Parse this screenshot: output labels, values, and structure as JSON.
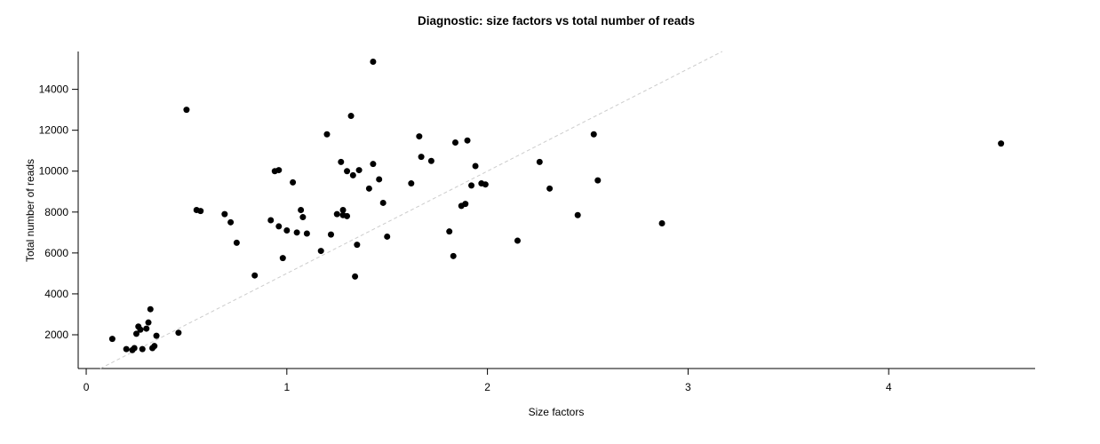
{
  "chart_data": {
    "type": "scatter",
    "title": "Diagnostic: size factors vs total number of reads",
    "xlabel": "Size factors",
    "ylabel": "Total number of reads",
    "xlim": [
      -0.04,
      4.73
    ],
    "ylim": [
      350,
      15850
    ],
    "x_ticks": [
      0,
      1,
      2,
      3,
      4
    ],
    "x_tick_labels": [
      "0",
      "1",
      "2",
      "3",
      "4"
    ],
    "y_ticks": [
      2000,
      4000,
      6000,
      8000,
      10000,
      12000,
      14000
    ],
    "y_tick_labels": [
      "2000",
      "4000",
      "6000",
      "8000",
      "10000",
      "12000",
      "14000"
    ],
    "grid": false,
    "legend": "none",
    "point_color": "#000000",
    "point_radius": 3.5,
    "axis_color": "#000000",
    "trend_line": {
      "style": "dashed",
      "intercept": 0,
      "slope": 5000,
      "color": "#cccccc"
    },
    "points": [
      [
        0.13,
        1800
      ],
      [
        0.2,
        1300
      ],
      [
        0.23,
        1250
      ],
      [
        0.24,
        1350
      ],
      [
        0.25,
        2050
      ],
      [
        0.26,
        2400
      ],
      [
        0.27,
        2250
      ],
      [
        0.28,
        1300
      ],
      [
        0.3,
        2300
      ],
      [
        0.31,
        2600
      ],
      [
        0.32,
        3250
      ],
      [
        0.33,
        1350
      ],
      [
        0.34,
        1450
      ],
      [
        0.35,
        1950
      ],
      [
        0.46,
        2100
      ],
      [
        0.5,
        13000
      ],
      [
        0.55,
        8100
      ],
      [
        0.57,
        8050
      ],
      [
        0.69,
        7900
      ],
      [
        0.72,
        7500
      ],
      [
        0.75,
        6500
      ],
      [
        0.84,
        4900
      ],
      [
        0.92,
        7600
      ],
      [
        0.94,
        10000
      ],
      [
        0.96,
        10050
      ],
      [
        0.96,
        7300
      ],
      [
        0.98,
        5750
      ],
      [
        1.0,
        7100
      ],
      [
        1.03,
        9450
      ],
      [
        1.05,
        7000
      ],
      [
        1.07,
        8100
      ],
      [
        1.08,
        7750
      ],
      [
        1.1,
        6950
      ],
      [
        1.17,
        6100
      ],
      [
        1.2,
        11800
      ],
      [
        1.22,
        6900
      ],
      [
        1.25,
        7900
      ],
      [
        1.27,
        10450
      ],
      [
        1.28,
        7850
      ],
      [
        1.28,
        8100
      ],
      [
        1.3,
        10000
      ],
      [
        1.3,
        7800
      ],
      [
        1.32,
        12700
      ],
      [
        1.33,
        9800
      ],
      [
        1.34,
        4850
      ],
      [
        1.35,
        6400
      ],
      [
        1.36,
        10050
      ],
      [
        1.41,
        9150
      ],
      [
        1.43,
        15350
      ],
      [
        1.43,
        10350
      ],
      [
        1.46,
        9600
      ],
      [
        1.48,
        8450
      ],
      [
        1.5,
        6800
      ],
      [
        1.62,
        9400
      ],
      [
        1.66,
        11700
      ],
      [
        1.67,
        10700
      ],
      [
        1.72,
        10500
      ],
      [
        1.81,
        7050
      ],
      [
        1.83,
        5850
      ],
      [
        1.84,
        11400
      ],
      [
        1.87,
        8300
      ],
      [
        1.89,
        8400
      ],
      [
        1.9,
        11500
      ],
      [
        1.92,
        9300
      ],
      [
        1.94,
        10250
      ],
      [
        1.97,
        9400
      ],
      [
        1.99,
        9350
      ],
      [
        2.15,
        6600
      ],
      [
        2.26,
        10450
      ],
      [
        2.31,
        9150
      ],
      [
        2.45,
        7850
      ],
      [
        2.53,
        11800
      ],
      [
        2.55,
        9550
      ],
      [
        2.87,
        7450
      ],
      [
        4.56,
        11350
      ]
    ]
  }
}
